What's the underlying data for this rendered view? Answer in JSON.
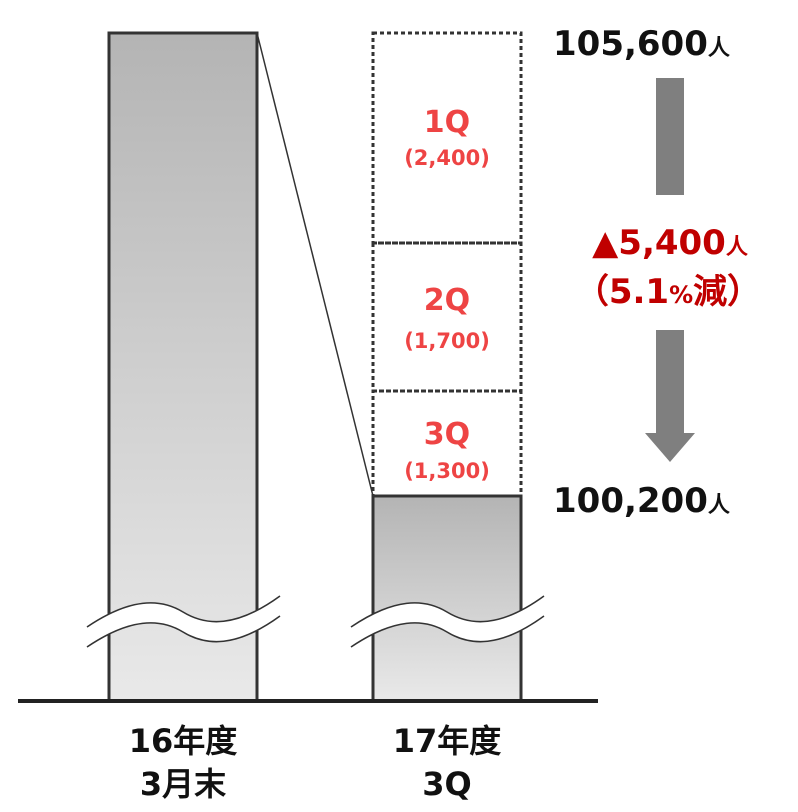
{
  "chart_data": {
    "type": "bar",
    "title": "",
    "xlabel": "",
    "ylabel": "",
    "axis_break": true,
    "categories": [
      {
        "line1": "16年度",
        "line2": "3月末"
      },
      {
        "line1": "17年度",
        "line2": "3Q"
      }
    ],
    "start_value": 105600,
    "end_value": 100200,
    "start_label": {
      "number": "105,600",
      "unit": "人"
    },
    "end_label": {
      "number": "100,200",
      "unit": "人"
    },
    "decreases": [
      {
        "quarter": "1Q",
        "value": 2400,
        "label": "(2,400)"
      },
      {
        "quarter": "2Q",
        "value": 1700,
        "label": "(1,700)"
      },
      {
        "quarter": "3Q",
        "value": 1300,
        "label": "(1,300)"
      }
    ],
    "change": {
      "value_label": "▲5,400",
      "unit": "人",
      "pct_open": "（5.1",
      "pct_sign": "%",
      "pct_close": "減）"
    },
    "colors": {
      "bar_dark": "#b4b4b4",
      "bar_light": "#e9e9e9",
      "outline": "#333333",
      "arrow": "#7f7f7f",
      "quarter_text": "#ee4444",
      "change_text": "#c00000",
      "value_text": "#111111"
    }
  }
}
